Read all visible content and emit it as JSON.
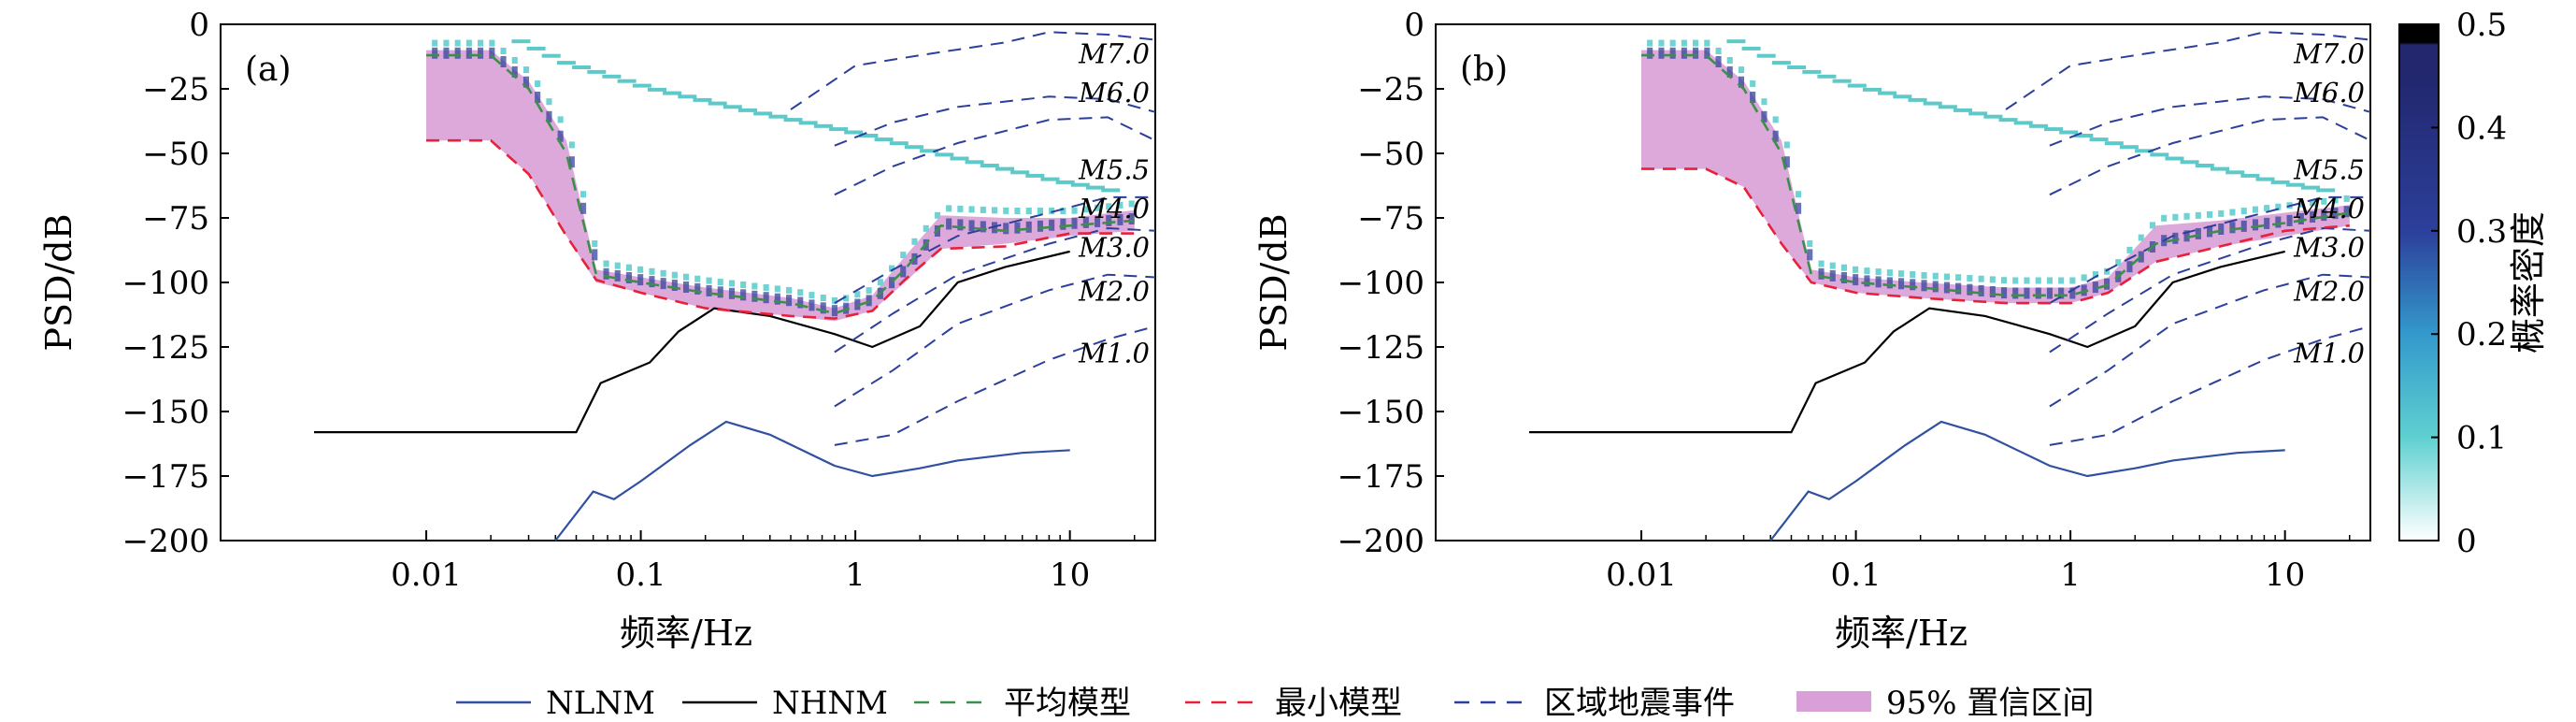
{
  "chart_data": {
    "type": "line",
    "panels": [
      {
        "label": "(a)",
        "conf_band": {
          "upper": [
            [
              0.01,
              -10
            ],
            [
              0.02,
              -10
            ],
            [
              0.03,
              -22
            ],
            [
              0.045,
              -45
            ],
            [
              0.062,
              -95
            ],
            [
              0.1,
              -98
            ],
            [
              0.2,
              -102
            ],
            [
              0.5,
              -106
            ],
            [
              0.8,
              -110
            ],
            [
              1.2,
              -105
            ],
            [
              1.7,
              -90
            ],
            [
              2.5,
              -74
            ],
            [
              5,
              -75
            ],
            [
              10,
              -75
            ],
            [
              20,
              -72
            ]
          ],
          "lower": [
            [
              0.01,
              -45
            ],
            [
              0.02,
              -45
            ],
            [
              0.03,
              -58
            ],
            [
              0.045,
              -82
            ],
            [
              0.062,
              -100
            ],
            [
              0.1,
              -104
            ],
            [
              0.2,
              -110
            ],
            [
              0.5,
              -113
            ],
            [
              0.8,
              -115
            ],
            [
              1.2,
              -111
            ],
            [
              1.7,
              -100
            ],
            [
              2.5,
              -87
            ],
            [
              5,
              -85
            ],
            [
              10,
              -82
            ],
            [
              20,
              -80
            ]
          ]
        },
        "average": [
          [
            0.01,
            -12
          ],
          [
            0.02,
            -12
          ],
          [
            0.03,
            -25
          ],
          [
            0.045,
            -50
          ],
          [
            0.062,
            -97
          ],
          [
            0.1,
            -100
          ],
          [
            0.2,
            -104
          ],
          [
            0.5,
            -108
          ],
          [
            0.8,
            -112
          ],
          [
            1.2,
            -107
          ],
          [
            1.7,
            -95
          ],
          [
            2.5,
            -78
          ],
          [
            5,
            -80
          ],
          [
            10,
            -78
          ],
          [
            20,
            -76
          ]
        ],
        "minimum": [
          [
            0.01,
            -45
          ],
          [
            0.02,
            -45
          ],
          [
            0.03,
            -58
          ],
          [
            0.045,
            -82
          ],
          [
            0.062,
            -99
          ],
          [
            0.1,
            -104
          ],
          [
            0.2,
            -110
          ],
          [
            0.5,
            -113
          ],
          [
            0.8,
            -114
          ],
          [
            1.2,
            -111
          ],
          [
            1.7,
            -99
          ],
          [
            2.5,
            -87
          ],
          [
            5,
            -86
          ],
          [
            10,
            -81
          ],
          [
            20,
            -81
          ]
        ]
      },
      {
        "label": "(b)",
        "conf_band": {
          "upper": [
            [
              0.01,
              -10
            ],
            [
              0.02,
              -10
            ],
            [
              0.03,
              -22
            ],
            [
              0.045,
              -45
            ],
            [
              0.062,
              -95
            ],
            [
              0.1,
              -98
            ],
            [
              0.2,
              -100
            ],
            [
              0.5,
              -102
            ],
            [
              1,
              -102
            ],
            [
              1.5,
              -98
            ],
            [
              2.5,
              -78
            ],
            [
              5,
              -76
            ],
            [
              10,
              -73
            ],
            [
              20,
              -70
            ]
          ],
          "lower": [
            [
              0.01,
              -56
            ],
            [
              0.02,
              -56
            ],
            [
              0.03,
              -63
            ],
            [
              0.045,
              -85
            ],
            [
              0.062,
              -100
            ],
            [
              0.1,
              -104
            ],
            [
              0.2,
              -106
            ],
            [
              0.5,
              -108
            ],
            [
              1,
              -108
            ],
            [
              1.5,
              -104
            ],
            [
              2.5,
              -92
            ],
            [
              5,
              -86
            ],
            [
              10,
              -82
            ],
            [
              20,
              -78
            ]
          ]
        },
        "average": [
          [
            0.01,
            -12
          ],
          [
            0.02,
            -12
          ],
          [
            0.03,
            -25
          ],
          [
            0.045,
            -50
          ],
          [
            0.062,
            -97
          ],
          [
            0.1,
            -100
          ],
          [
            0.2,
            -102
          ],
          [
            0.5,
            -105
          ],
          [
            1,
            -105
          ],
          [
            1.5,
            -101
          ],
          [
            2.5,
            -85
          ],
          [
            5,
            -80
          ],
          [
            10,
            -77
          ],
          [
            20,
            -73
          ]
        ],
        "minimum": [
          [
            0.01,
            -56
          ],
          [
            0.02,
            -56
          ],
          [
            0.03,
            -63
          ],
          [
            0.045,
            -85
          ],
          [
            0.062,
            -100
          ],
          [
            0.1,
            -104
          ],
          [
            0.2,
            -106
          ],
          [
            0.5,
            -108
          ],
          [
            1,
            -108
          ],
          [
            1.5,
            -104
          ],
          [
            2.5,
            -92
          ],
          [
            5,
            -86
          ],
          [
            10,
            -80
          ],
          [
            20,
            -78
          ]
        ]
      }
    ],
    "nlnm": [
      [
        0.04,
        -200
      ],
      [
        0.06,
        -181
      ],
      [
        0.075,
        -184
      ],
      [
        0.1,
        -177
      ],
      [
        0.17,
        -163
      ],
      [
        0.25,
        -154
      ],
      [
        0.4,
        -159
      ],
      [
        0.8,
        -171
      ],
      [
        1.2,
        -175
      ],
      [
        2,
        -172
      ],
      [
        3,
        -169
      ],
      [
        6,
        -166
      ],
      [
        10,
        -165
      ]
    ],
    "nhnm": [
      [
        0.003,
        -158
      ],
      [
        0.05,
        -158
      ],
      [
        0.065,
        -139
      ],
      [
        0.11,
        -131
      ],
      [
        0.15,
        -119
      ],
      [
        0.22,
        -110
      ],
      [
        0.4,
        -113
      ],
      [
        0.8,
        -120
      ],
      [
        1.2,
        -125
      ],
      [
        2,
        -117
      ],
      [
        3,
        -100
      ],
      [
        5,
        -94
      ],
      [
        10,
        -88
      ]
    ],
    "quake_events": [
      {
        "label": "M7.0",
        "points": [
          [
            0.5,
            -33
          ],
          [
            1,
            -16
          ],
          [
            2,
            -12
          ],
          [
            5,
            -7
          ],
          [
            8,
            -3
          ],
          [
            15,
            -4
          ],
          [
            25,
            -6
          ]
        ]
      },
      {
        "label": "M6.0",
        "points": [
          [
            0.8,
            -47
          ],
          [
            1.5,
            -38
          ],
          [
            3,
            -32
          ],
          [
            8,
            -28
          ],
          [
            15,
            -29
          ],
          [
            25,
            -34
          ]
        ]
      },
      {
        "label": "M5.5",
        "points": [
          [
            0.8,
            -66
          ],
          [
            1.5,
            -55
          ],
          [
            3,
            -46
          ],
          [
            8,
            -37
          ],
          [
            15,
            -36
          ],
          [
            25,
            -45
          ]
        ]
      },
      {
        "label": "M4.0",
        "points": [
          [
            0.8,
            -108
          ],
          [
            1.5,
            -95
          ],
          [
            3,
            -82
          ],
          [
            8,
            -73
          ],
          [
            15,
            -67
          ],
          [
            25,
            -67
          ]
        ]
      },
      {
        "label": "M3.0",
        "points": [
          [
            0.8,
            -127
          ],
          [
            1.5,
            -112
          ],
          [
            3,
            -97
          ],
          [
            8,
            -85
          ],
          [
            15,
            -79
          ],
          [
            25,
            -80
          ]
        ]
      },
      {
        "label": "M2.0",
        "points": [
          [
            0.8,
            -148
          ],
          [
            1.5,
            -134
          ],
          [
            3,
            -116
          ],
          [
            8,
            -103
          ],
          [
            15,
            -97
          ],
          [
            25,
            -98
          ]
        ]
      },
      {
        "label": "M1.0",
        "points": [
          [
            0.8,
            -163
          ],
          [
            1.5,
            -159
          ],
          [
            3,
            -146
          ],
          [
            8,
            -130
          ],
          [
            15,
            -122
          ],
          [
            25,
            -117
          ]
        ]
      }
    ],
    "xlabel": "频率/Hz",
    "ylabel": "PSD/dB",
    "x_scale": "log",
    "xlim": [
      0.0011,
      25
    ],
    "ylim": [
      -200,
      0
    ],
    "xticks": [
      0.01,
      0.1,
      1,
      10
    ],
    "xtick_labels": [
      "0.01",
      "0.1",
      "1",
      "10"
    ],
    "yticks": [
      0,
      -25,
      -50,
      -75,
      -100,
      -125,
      -150,
      -175,
      -200
    ],
    "ytick_labels": [
      "0",
      "−25",
      "−50",
      "−75",
      "−100",
      "−125",
      "−150",
      "−175",
      "−200"
    ],
    "colorbar": {
      "label": "概率密度",
      "range": [
        0,
        0.5
      ],
      "ticks": [
        "0",
        "0.1",
        "0.2",
        "0.3",
        "0.4",
        "0.5"
      ],
      "tick_values": [
        0,
        0.1,
        0.2,
        0.3,
        0.4,
        0.5
      ],
      "colors": [
        "#ffffff",
        "#5fd0d0",
        "#3399cc",
        "#2c3f9a",
        "#22276e",
        "#000000"
      ]
    },
    "legend": [
      {
        "name": "NLNM",
        "style": "solid",
        "color": "#3050a0"
      },
      {
        "name": "NHNM",
        "style": "solid",
        "color": "#000000"
      },
      {
        "name": "平均模型",
        "style": "dashed",
        "color": "#3c8f4a"
      },
      {
        "name": "最小模型",
        "style": "dashed",
        "color": "#e8203a"
      },
      {
        "name": "区域地震事件",
        "style": "dashed",
        "color": "#2c3f9a"
      },
      {
        "name": "95% 置信区间",
        "style": "band",
        "color": "#d8a0d6"
      }
    ]
  }
}
